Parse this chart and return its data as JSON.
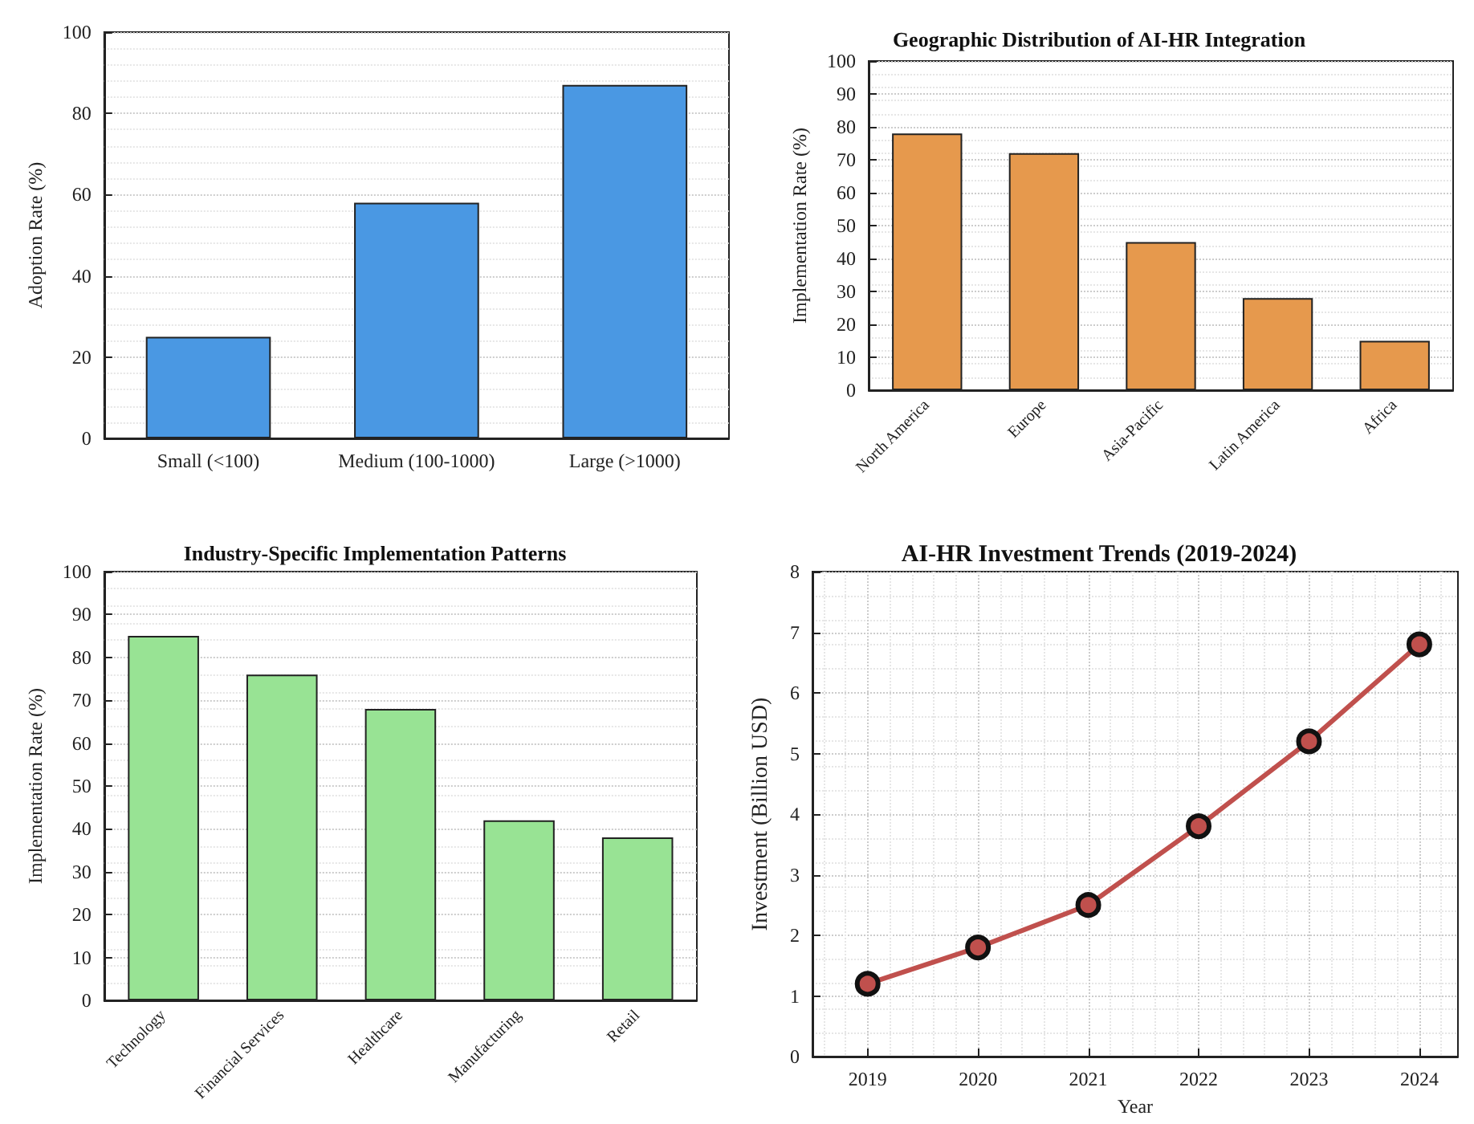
{
  "chart_data": [
    {
      "type": "bar",
      "ylabel": "Adoption Rate (%)",
      "categories": [
        "Small (<100)",
        "Medium (100-1000)",
        "Large (>1000)"
      ],
      "values": [
        25,
        58,
        87
      ],
      "color": "#4a98e3",
      "ylim": [
        0,
        100
      ],
      "yticks": [
        0,
        20,
        40,
        60,
        80,
        100
      ],
      "grid": true
    },
    {
      "type": "bar",
      "title": "Geographic Distribution of AI-HR Integration",
      "ylabel": "Implementation Rate (%)",
      "categories": [
        "North America",
        "Europe",
        "Asia-Pacific",
        "Latin America",
        "Africa"
      ],
      "values": [
        78,
        72,
        45,
        28,
        15
      ],
      "color": "#e6994d",
      "ylim": [
        0,
        100
      ],
      "yticks": [
        0,
        10,
        20,
        30,
        40,
        50,
        60,
        70,
        80,
        90,
        100
      ],
      "grid": true
    },
    {
      "type": "bar",
      "title": "Industry-Specific Implementation Patterns",
      "ylabel": "Implementation Rate (%)",
      "categories": [
        "Technology",
        "Financial Services",
        "Healthcare",
        "Manufacturing",
        "Retail"
      ],
      "values": [
        85,
        76,
        68,
        42,
        38
      ],
      "color": "#98e394",
      "ylim": [
        0,
        100
      ],
      "yticks": [
        0,
        10,
        20,
        30,
        40,
        50,
        60,
        70,
        80,
        90,
        100
      ],
      "grid": true
    },
    {
      "type": "line",
      "title": "AI-HR Investment Trends (2019-2024)",
      "xlabel": "Year",
      "ylabel": "Investment (Billion USD)",
      "x": [
        2019,
        2020,
        2021,
        2022,
        2023,
        2024
      ],
      "values": [
        1.2,
        1.8,
        2.5,
        3.8,
        5.2,
        6.8
      ],
      "color": "#c0504d",
      "marker": "circle",
      "xlim": [
        2018.5,
        2024.35
      ],
      "xticks": [
        2019,
        2020,
        2021,
        2022,
        2023,
        2024
      ],
      "ylim": [
        0,
        8
      ],
      "yticks": [
        0,
        1,
        2,
        3,
        4,
        5,
        6,
        7,
        8
      ],
      "grid": true
    }
  ]
}
